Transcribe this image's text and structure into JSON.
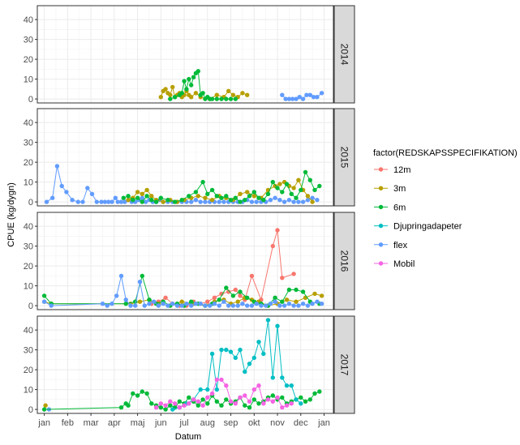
{
  "chart_data": {
    "type": "line",
    "xlabel": "Datum",
    "ylabel": "CPUE (kg/dygn)",
    "ylim": [
      -2,
      47
    ],
    "yticks": [
      0,
      10,
      20,
      30,
      40
    ],
    "xlim": [
      -0.3,
      12.4
    ],
    "xtick_pos": [
      0,
      1,
      2,
      3,
      4,
      5,
      6,
      7,
      8,
      9,
      10,
      11,
      12
    ],
    "xtick_labels": [
      "jan",
      "feb",
      "mar",
      "apr",
      "maj",
      "jun",
      "jul",
      "aug",
      "sep",
      "okt",
      "nov",
      "dec",
      "jan"
    ],
    "legend": {
      "title": "factor(REDSKAPSSPECIFIKATION)",
      "position": "right",
      "entries": [
        {
          "name": "12m",
          "color": "#F8766D"
        },
        {
          "name": "3m",
          "color": "#B79F00"
        },
        {
          "name": "6m",
          "color": "#00BA38"
        },
        {
          "name": "Djupringadapeter",
          "color": "#00BFC4"
        },
        {
          "name": "flex",
          "color": "#619CFF"
        },
        {
          "name": "Mobil",
          "color": "#F564E3"
        }
      ]
    },
    "panels": [
      {
        "label": "2014",
        "series": [
          {
            "name": "3m",
            "x": [
              5.0,
              5.1,
              5.2,
              5.3,
              5.4,
              5.5,
              5.6,
              5.7,
              5.8,
              5.9,
              6.0,
              6.1,
              6.2,
              6.3,
              6.5,
              6.7,
              7.1,
              7.4,
              7.7,
              7.9,
              8.1,
              8.3,
              8.5,
              8.7
            ],
            "y": [
              1,
              4,
              5,
              3,
              2,
              6,
              1,
              2,
              3,
              1,
              2,
              4,
              2,
              1,
              3,
              1,
              0,
              2,
              1,
              4,
              2,
              1,
              3,
              2
            ]
          },
          {
            "name": "6m",
            "x": [
              5.4,
              5.6,
              5.8,
              5.9,
              6.0,
              6.1,
              6.2,
              6.3,
              6.4,
              6.5,
              6.6,
              6.7,
              6.8,
              6.9,
              7.0,
              7.1,
              7.2,
              7.4,
              7.6,
              7.8,
              8.0,
              8.2
            ],
            "y": [
              0,
              1,
              2,
              3,
              9,
              5,
              10,
              7,
              11,
              13,
              14,
              2,
              3,
              0,
              1,
              0,
              0,
              0,
              0,
              0,
              0,
              0
            ]
          },
          {
            "name": "flex",
            "x": [
              10.2,
              10.35,
              10.5,
              10.65,
              10.8,
              10.95,
              11.1,
              11.25,
              11.4,
              11.55,
              11.7,
              11.9
            ],
            "y": [
              2,
              0,
              0,
              0,
              0,
              1,
              0,
              2,
              2,
              1,
              1,
              3
            ]
          }
        ]
      },
      {
        "label": "2015",
        "series": [
          {
            "name": "flex",
            "x": [
              0.1,
              0.35,
              0.55,
              0.75,
              0.95,
              1.2,
              1.45,
              1.65,
              1.85,
              2.05,
              2.25,
              2.45,
              2.6,
              2.75,
              2.9,
              3.05,
              3.15,
              3.3,
              3.45,
              3.6,
              3.75,
              3.9,
              4.05,
              4.2,
              4.35,
              4.5,
              4.65,
              4.8,
              4.95,
              5.1,
              5.3,
              5.5,
              5.7,
              5.9,
              6.1,
              6.3,
              6.5,
              6.7,
              6.9,
              7.1,
              7.3,
              7.5,
              7.7,
              7.9,
              8.1,
              8.3,
              8.5,
              8.7,
              8.9,
              9.1,
              9.3,
              9.5,
              9.7,
              9.9,
              10.1,
              10.3,
              10.5,
              10.7,
              10.9,
              11.1,
              11.3,
              11.5,
              11.7
            ],
            "y": [
              0,
              2,
              18,
              8,
              5,
              1,
              0,
              0,
              7,
              4,
              0,
              0,
              0,
              0,
              0,
              2,
              0,
              0,
              0,
              1,
              0,
              0,
              1,
              2,
              0,
              1,
              0,
              0,
              1,
              0,
              0,
              0,
              0,
              0,
              0,
              0,
              1,
              0,
              0,
              0,
              0,
              0,
              0,
              0,
              0,
              0,
              0,
              1,
              0,
              0,
              0,
              0,
              1,
              2,
              1,
              0,
              1,
              0,
              0,
              0,
              1,
              2,
              1
            ]
          },
          {
            "name": "3m",
            "x": [
              3.6,
              3.8,
              4.0,
              4.2,
              4.4,
              4.6,
              4.8,
              5.1,
              5.4,
              5.7,
              6.0,
              6.3,
              6.6,
              6.9,
              7.2,
              7.5,
              7.8,
              8.1,
              8.4,
              8.7,
              9.0,
              9.3,
              9.6,
              9.9,
              10.1,
              10.3,
              10.5,
              10.7,
              10.9,
              11.1,
              11.3,
              11.5
            ],
            "y": [
              1,
              2,
              5,
              4,
              6,
              3,
              1,
              0,
              1,
              0,
              1,
              2,
              3,
              2,
              1,
              3,
              2,
              1,
              4,
              5,
              3,
              2,
              6,
              8,
              9,
              10,
              8,
              7,
              11,
              6,
              3,
              0
            ]
          },
          {
            "name": "6m",
            "x": [
              3.4,
              3.6,
              3.8,
              4.0,
              4.2,
              4.4,
              4.6,
              4.8,
              5.0,
              5.3,
              5.6,
              5.9,
              6.2,
              6.5,
              6.8,
              7.0,
              7.2,
              7.4,
              7.6,
              7.8,
              8.0,
              8.2,
              8.4,
              8.6,
              8.8,
              9.0,
              9.2,
              9.4,
              9.6,
              9.8,
              10.0,
              10.2,
              10.4,
              10.6,
              10.8,
              11.0,
              11.2,
              11.4,
              11.6,
              11.8
            ],
            "y": [
              2,
              3,
              1,
              2,
              0,
              3,
              1,
              0,
              2,
              1,
              0,
              1,
              3,
              5,
              10,
              4,
              6,
              3,
              2,
              3,
              1,
              2,
              0,
              1,
              3,
              5,
              2,
              1,
              4,
              10,
              7,
              5,
              9,
              4,
              2,
              6,
              15,
              11,
              6,
              8
            ]
          }
        ]
      },
      {
        "label": "2016",
        "series": [
          {
            "name": "12m",
            "x": [
              4.6,
              4.9,
              5.2,
              5.5,
              5.8,
              6.1,
              6.4,
              6.7,
              7.0,
              7.3,
              7.6,
              7.9,
              8.2,
              8.4,
              8.6,
              8.9,
              9.3,
              9.8,
              10.0,
              10.2,
              10.7
            ],
            "y": [
              1,
              2,
              4,
              1,
              0,
              0,
              2,
              1,
              2,
              4,
              6,
              7,
              8,
              5,
              3,
              15,
              3,
              30,
              38,
              14,
              16
            ]
          },
          {
            "name": "3m",
            "x": [
              0.0,
              0.3,
              3.7,
              4.1,
              4.5,
              4.9,
              5.4,
              5.9,
              6.4,
              6.9,
              7.3,
              7.7,
              8.0,
              8.3,
              8.6,
              8.9,
              9.2,
              9.6,
              10.0,
              10.4,
              10.8,
              11.2,
              11.6,
              11.9
            ],
            "y": [
              2,
              1,
              1,
              2,
              3,
              1,
              0,
              2,
              1,
              0,
              2,
              3,
              1,
              2,
              4,
              3,
              2,
              0,
              1,
              3,
              2,
              4,
              6,
              5
            ]
          },
          {
            "name": "6m",
            "x": [
              0.0,
              0.3,
              3.5,
              3.9,
              4.2,
              4.5,
              4.8,
              5.1,
              5.4,
              5.7,
              6.0,
              6.3,
              6.6,
              6.9,
              7.2,
              7.5,
              7.8,
              8.1,
              8.4,
              8.7,
              9.0,
              9.3,
              9.6,
              9.9,
              10.2,
              10.5,
              10.8,
              11.1,
              11.4,
              11.8
            ],
            "y": [
              5,
              1,
              1,
              2,
              15,
              3,
              1,
              2,
              0,
              1,
              0,
              2,
              1,
              0,
              1,
              3,
              9,
              5,
              7,
              4,
              2,
              1,
              0,
              4,
              2,
              8,
              8,
              7,
              2,
              1
            ]
          },
          {
            "name": "flex",
            "x": [
              0.0,
              0.3,
              2.5,
              2.7,
              2.9,
              3.1,
              3.3,
              3.5,
              3.7,
              3.9,
              4.1,
              4.3,
              4.5,
              4.7,
              4.9,
              5.1,
              5.3,
              5.5,
              5.7,
              5.9,
              6.1,
              6.3,
              6.5,
              6.7,
              6.9,
              7.1,
              7.3,
              7.5,
              7.7,
              7.9,
              8.1,
              8.3,
              8.5,
              8.7,
              8.9,
              9.1,
              9.3,
              9.5,
              9.7,
              9.9,
              10.1,
              10.3,
              10.5,
              10.7,
              10.9,
              11.1,
              11.3,
              11.5,
              11.7,
              11.9
            ],
            "y": [
              2,
              0,
              1,
              0,
              1,
              5,
              15,
              3,
              0,
              0,
              12,
              0,
              1,
              2,
              0,
              1,
              0,
              1,
              0,
              0,
              1,
              0,
              1,
              1,
              0,
              0,
              1,
              0,
              2,
              0,
              0,
              0,
              1,
              0,
              0,
              1,
              0,
              0,
              1,
              2,
              0,
              0,
              1,
              0,
              0,
              1,
              0,
              1,
              2,
              1
            ]
          }
        ]
      },
      {
        "label": "2017",
        "series": [
          {
            "name": "3m",
            "x": [
              0.05
            ],
            "y": [
              2
            ]
          },
          {
            "name": "flex",
            "x": [
              0.2
            ],
            "y": [
              0
            ]
          },
          {
            "name": "6m",
            "x": [
              0.0,
              3.3,
              3.5,
              3.6,
              3.8,
              4.0,
              4.2,
              4.4,
              4.6,
              4.8,
              5.0,
              5.2,
              5.4,
              5.6,
              5.8,
              6.0,
              6.2,
              6.4,
              6.6,
              6.8,
              7.0,
              7.2,
              7.4,
              7.6,
              7.8,
              8.0,
              8.2,
              8.4,
              8.6,
              8.8,
              9.0,
              9.2,
              9.4,
              9.6,
              9.8,
              10.0,
              10.2,
              10.4,
              10.6,
              10.8,
              11.0,
              11.2,
              11.4,
              11.6,
              11.8
            ],
            "y": [
              0,
              1,
              3,
              2,
              8,
              7,
              9,
              8,
              3,
              2,
              1,
              0,
              2,
              1,
              4,
              3,
              6,
              4,
              2,
              5,
              3,
              7,
              4,
              2,
              5,
              3,
              4,
              6,
              2,
              1,
              5,
              3,
              4,
              6,
              7,
              5,
              6,
              3,
              4,
              5,
              6,
              4,
              5,
              8,
              9
            ]
          },
          {
            "name": "Djupringadapeter",
            "x": [
              5.5,
              5.8,
              6.1,
              6.4,
              6.7,
              7.0,
              7.2,
              7.4,
              7.6,
              7.8,
              8.0,
              8.2,
              8.4,
              8.6,
              8.8,
              9.0,
              9.2,
              9.4,
              9.6,
              9.8,
              10.0,
              10.2,
              10.4,
              10.6,
              10.8,
              11.0
            ],
            "y": [
              0,
              1,
              3,
              5,
              10,
              10,
              28,
              10,
              30,
              30,
              29,
              26,
              30,
              19,
              23,
              26,
              34,
              28,
              45,
              16,
              42,
              16,
              12,
              12,
              5,
              3
            ]
          },
          {
            "name": "Mobil",
            "x": [
              4.8,
              5.0,
              5.2,
              5.4,
              5.6,
              5.8,
              6.0,
              6.2,
              6.4,
              6.6,
              6.8,
              7.0,
              7.2,
              7.4,
              7.6,
              7.8,
              8.0,
              8.2,
              8.4,
              8.6,
              8.8,
              9.0,
              9.2,
              9.4,
              9.6,
              9.8,
              10.0,
              10.2,
              10.4,
              10.6
            ],
            "y": [
              1,
              3,
              2,
              4,
              3,
              1,
              2,
              3,
              5,
              4,
              2,
              6,
              8,
              15,
              15,
              12,
              4,
              3,
              6,
              7,
              4,
              10,
              12,
              3,
              5,
              4,
              6,
              1,
              2,
              3
            ]
          }
        ]
      }
    ]
  }
}
